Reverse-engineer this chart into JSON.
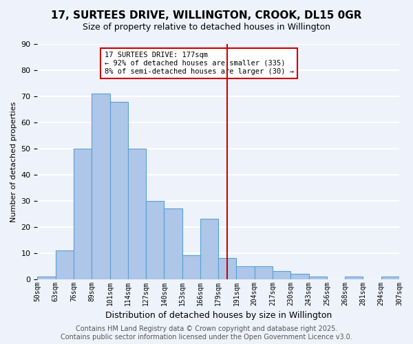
{
  "title": "17, SURTEES DRIVE, WILLINGTON, CROOK, DL15 0GR",
  "subtitle": "Size of property relative to detached houses in Willington",
  "xlabel": "Distribution of detached houses by size in Willington",
  "ylabel": "Number of detached properties",
  "bin_labels": [
    "50sqm",
    "63sqm",
    "76sqm",
    "89sqm",
    "101sqm",
    "114sqm",
    "127sqm",
    "140sqm",
    "153sqm",
    "166sqm",
    "179sqm",
    "191sqm",
    "204sqm",
    "217sqm",
    "230sqm",
    "243sqm",
    "256sqm",
    "268sqm",
    "281sqm",
    "294sqm",
    "307sqm"
  ],
  "bar_values": [
    1,
    11,
    50,
    71,
    68,
    50,
    30,
    27,
    9,
    23,
    8,
    5,
    5,
    3,
    2,
    1,
    0,
    1,
    0,
    1
  ],
  "bar_color": "#aec6e8",
  "bar_edge_color": "#5a9fd4",
  "vline_x_index": 10,
  "vline_color": "#cc0000",
  "ylim": [
    0,
    90
  ],
  "yticks": [
    0,
    10,
    20,
    30,
    40,
    50,
    60,
    70,
    80,
    90
  ],
  "annotation_title": "17 SURTEES DRIVE: 177sqm",
  "annotation_line1": "← 92% of detached houses are smaller (335)",
  "annotation_line2": "8% of semi-detached houses are larger (30) →",
  "annotation_box_color": "#ffffff",
  "annotation_box_edge": "#cc0000",
  "footer1": "Contains HM Land Registry data © Crown copyright and database right 2025.",
  "footer2": "Contains public sector information licensed under the Open Government Licence v3.0.",
  "bg_color": "#eef2fb",
  "grid_color": "#ffffff",
  "title_fontsize": 11,
  "subtitle_fontsize": 9,
  "footer_fontsize": 7
}
